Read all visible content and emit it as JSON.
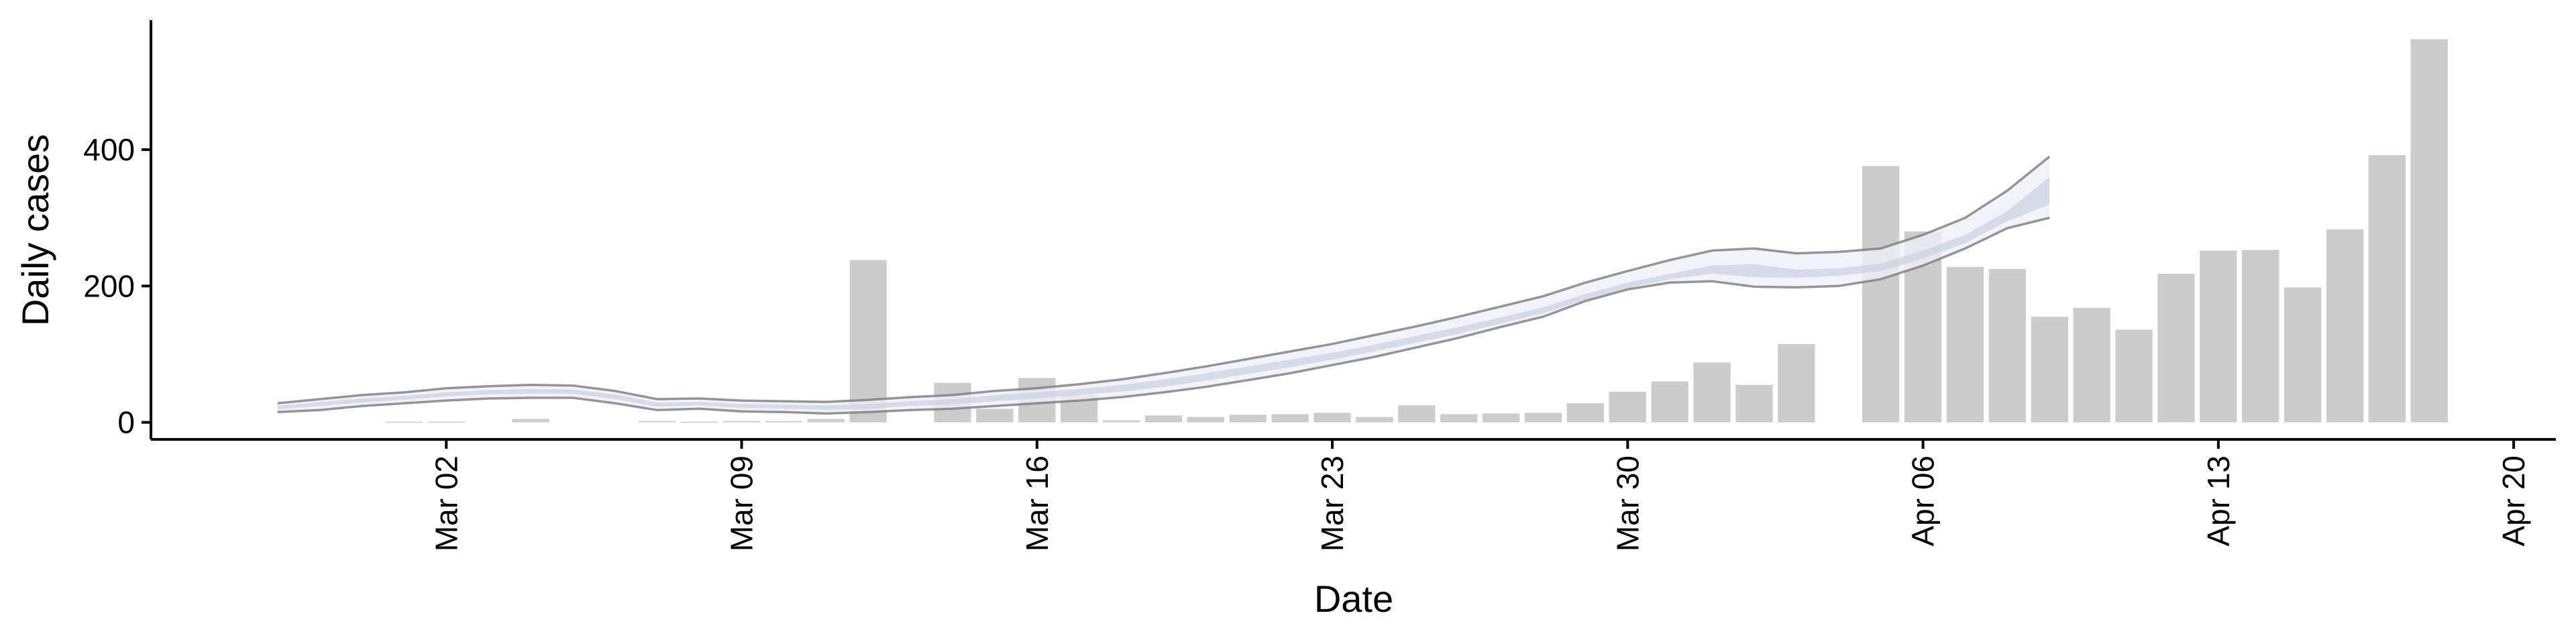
{
  "chart_data": {
    "type": "bar",
    "xlabel": "Date",
    "ylabel": "Daily cases",
    "x_ticks": [
      "Mar 02",
      "Mar 09",
      "Mar 16",
      "Mar 23",
      "Mar 30",
      "Apr 06",
      "Apr 13",
      "Apr 20"
    ],
    "y_ticks": [
      "0",
      "200",
      "400"
    ],
    "ylim": [
      -25,
      590
    ],
    "xlim": [
      "2020-02-24",
      "2020-04-21"
    ],
    "grid": false,
    "colors": {
      "bars": "#cccccc",
      "outer_band": "#eef0f6",
      "inner_band": "#c9d0e2",
      "band_edge": "#7a7a7a"
    },
    "bars": {
      "dates": [
        "2020-02-29",
        "2020-03-01",
        "2020-03-02",
        "2020-03-03",
        "2020-03-04",
        "2020-03-05",
        "2020-03-06",
        "2020-03-07",
        "2020-03-08",
        "2020-03-09",
        "2020-03-10",
        "2020-03-11",
        "2020-03-12",
        "2020-03-13",
        "2020-03-14",
        "2020-03-15",
        "2020-03-16",
        "2020-03-17",
        "2020-03-18",
        "2020-03-19",
        "2020-03-20",
        "2020-03-21",
        "2020-03-22",
        "2020-03-23",
        "2020-03-24",
        "2020-03-25",
        "2020-03-26",
        "2020-03-27",
        "2020-03-28",
        "2020-03-29",
        "2020-03-30",
        "2020-03-31",
        "2020-04-01",
        "2020-04-02",
        "2020-04-03",
        "2020-04-04",
        "2020-04-05",
        "2020-04-06",
        "2020-04-07",
        "2020-04-08",
        "2020-04-09",
        "2020-04-10",
        "2020-04-11",
        "2020-04-12",
        "2020-04-13",
        "2020-04-14",
        "2020-04-15",
        "2020-04-16",
        "2020-04-17",
        "2020-04-18"
      ],
      "values": [
        0,
        1,
        1,
        0,
        5,
        0,
        0,
        2,
        1,
        2,
        2,
        5,
        238,
        0,
        58,
        20,
        65,
        40,
        3,
        10,
        8,
        11,
        12,
        14,
        8,
        25,
        12,
        13,
        14,
        28,
        45,
        60,
        88,
        55,
        115,
        0,
        376,
        280,
        228,
        225,
        155,
        168,
        136,
        218,
        252,
        253,
        198,
        283,
        392,
        562
      ]
    },
    "series": [
      {
        "role": "outer band",
        "dates": [
          "2020-02-27",
          "2020-02-28",
          "2020-02-29",
          "2020-03-01",
          "2020-03-02",
          "2020-03-03",
          "2020-03-04",
          "2020-03-05",
          "2020-03-06",
          "2020-03-07",
          "2020-03-08",
          "2020-03-09",
          "2020-03-10",
          "2020-03-11",
          "2020-03-12",
          "2020-03-13",
          "2020-03-14",
          "2020-03-15",
          "2020-03-16",
          "2020-03-17",
          "2020-03-18",
          "2020-03-19",
          "2020-03-20",
          "2020-03-21",
          "2020-03-22",
          "2020-03-23",
          "2020-03-24",
          "2020-03-25",
          "2020-03-26",
          "2020-03-27",
          "2020-03-28",
          "2020-03-29",
          "2020-03-30",
          "2020-03-31",
          "2020-04-01",
          "2020-04-02",
          "2020-04-03",
          "2020-04-04",
          "2020-04-05",
          "2020-04-06",
          "2020-04-07",
          "2020-04-08",
          "2020-04-09"
        ],
        "upper": [
          28,
          34,
          40,
          44,
          50,
          53,
          55,
          54,
          46,
          34,
          35,
          32,
          31,
          30,
          33,
          37,
          40,
          46,
          50,
          56,
          63,
          72,
          82,
          93,
          104,
          115,
          128,
          141,
          155,
          170,
          185,
          205,
          222,
          238,
          252,
          255,
          248,
          250,
          255,
          275,
          300,
          340,
          390
        ],
        "lower": [
          15,
          18,
          24,
          28,
          32,
          35,
          36,
          36,
          28,
          18,
          20,
          16,
          15,
          13,
          15,
          18,
          20,
          24,
          28,
          32,
          37,
          44,
          52,
          62,
          72,
          84,
          96,
          110,
          124,
          140,
          155,
          178,
          195,
          205,
          207,
          199,
          198,
          200,
          210,
          230,
          255,
          285,
          300
        ]
      },
      {
        "role": "inner band",
        "upper": [
          24,
          30,
          35,
          39,
          44,
          47,
          49,
          48,
          41,
          29,
          30,
          27,
          26,
          25,
          27,
          31,
          34,
          40,
          44,
          49,
          55,
          63,
          72,
          82,
          92,
          102,
          114,
          127,
          140,
          154,
          169,
          188,
          205,
          218,
          230,
          232,
          224,
          226,
          233,
          252,
          275,
          310,
          360
        ],
        "lower": [
          19,
          24,
          29,
          33,
          38,
          41,
          42,
          42,
          34,
          23,
          25,
          21,
          20,
          18,
          20,
          24,
          26,
          31,
          35,
          40,
          45,
          52,
          61,
          71,
          81,
          92,
          104,
          117,
          130,
          145,
          160,
          180,
          197,
          210,
          218,
          213,
          212,
          215,
          222,
          240,
          263,
          295,
          320
        ]
      }
    ]
  }
}
